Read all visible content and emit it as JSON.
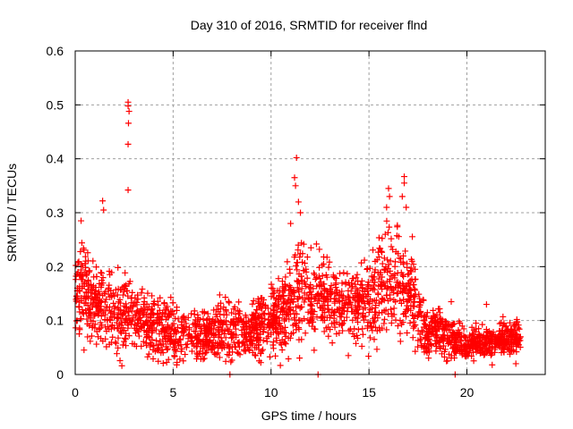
{
  "chart_data": {
    "type": "scatter",
    "title": "Day 310 of 2016, SRMTID for receiver flnd",
    "xlabel": "GPS time / hours",
    "ylabel": "SRMTID / TECUs",
    "xlim": [
      0,
      24
    ],
    "ylim": [
      0,
      0.6
    ],
    "xticks": [
      0,
      5,
      10,
      15,
      20
    ],
    "xtick_labels": [
      "0",
      "5",
      "10",
      "15",
      "20"
    ],
    "yticks": [
      0,
      0.1,
      0.2,
      0.3,
      0.4,
      0.5,
      0.6
    ],
    "ytick_labels": [
      "0",
      "0.1",
      "0.2",
      "0.3",
      "0.4",
      "0.5",
      "0.6"
    ],
    "grid": true,
    "legend": "none",
    "marker": "plus",
    "color": "#ff0000",
    "series": [
      {
        "name": "SRMTID",
        "envelope": {
          "x": [
            0.0,
            0.5,
            1.0,
            1.5,
            2.0,
            2.5,
            3.0,
            3.5,
            4.0,
            4.5,
            5.0,
            5.5,
            6.0,
            6.5,
            7.0,
            7.5,
            8.0,
            8.5,
            9.0,
            9.5,
            10.0,
            10.5,
            11.0,
            11.5,
            12.0,
            12.5,
            13.0,
            13.5,
            14.0,
            14.5,
            15.0,
            15.5,
            16.0,
            16.5,
            17.0,
            17.5,
            18.0,
            18.5,
            19.0,
            19.5,
            20.0,
            20.5,
            21.0,
            21.5,
            22.0,
            22.5
          ],
          "median": [
            0.15,
            0.16,
            0.13,
            0.13,
            0.1,
            0.12,
            0.11,
            0.1,
            0.09,
            0.08,
            0.08,
            0.08,
            0.07,
            0.07,
            0.08,
            0.08,
            0.08,
            0.08,
            0.08,
            0.09,
            0.1,
            0.11,
            0.13,
            0.16,
            0.14,
            0.15,
            0.13,
            0.13,
            0.14,
            0.13,
            0.15,
            0.16,
            0.17,
            0.17,
            0.16,
            0.12,
            0.08,
            0.08,
            0.07,
            0.06,
            0.06,
            0.06,
            0.06,
            0.06,
            0.07,
            0.07
          ],
          "spread": [
            0.06,
            0.06,
            0.05,
            0.06,
            0.04,
            0.06,
            0.04,
            0.04,
            0.04,
            0.04,
            0.04,
            0.04,
            0.03,
            0.03,
            0.03,
            0.04,
            0.04,
            0.04,
            0.04,
            0.04,
            0.04,
            0.05,
            0.06,
            0.07,
            0.05,
            0.05,
            0.05,
            0.04,
            0.05,
            0.05,
            0.06,
            0.07,
            0.07,
            0.07,
            0.06,
            0.05,
            0.03,
            0.03,
            0.03,
            0.02,
            0.02,
            0.02,
            0.02,
            0.02,
            0.02,
            0.02
          ]
        },
        "notable_points": [
          {
            "x": 2.7,
            "y": 0.505
          },
          {
            "x": 2.7,
            "y": 0.498
          },
          {
            "x": 2.75,
            "y": 0.488
          },
          {
            "x": 2.72,
            "y": 0.466
          },
          {
            "x": 2.7,
            "y": 0.427
          },
          {
            "x": 2.7,
            "y": 0.342
          },
          {
            "x": 0.3,
            "y": 0.285
          },
          {
            "x": 1.4,
            "y": 0.322
          },
          {
            "x": 1.45,
            "y": 0.305
          },
          {
            "x": 11.3,
            "y": 0.402
          },
          {
            "x": 11.2,
            "y": 0.365
          },
          {
            "x": 11.25,
            "y": 0.35
          },
          {
            "x": 11.4,
            "y": 0.32
          },
          {
            "x": 11.5,
            "y": 0.3
          },
          {
            "x": 11.0,
            "y": 0.28
          },
          {
            "x": 16.0,
            "y": 0.345
          },
          {
            "x": 16.05,
            "y": 0.33
          },
          {
            "x": 15.9,
            "y": 0.31
          },
          {
            "x": 16.8,
            "y": 0.367
          },
          {
            "x": 16.8,
            "y": 0.355
          },
          {
            "x": 16.7,
            "y": 0.33
          },
          {
            "x": 16.9,
            "y": 0.31
          },
          {
            "x": 17.2,
            "y": 0.21
          },
          {
            "x": 19.2,
            "y": 0.135
          },
          {
            "x": 21.0,
            "y": 0.13
          },
          {
            "x": 22.5,
            "y": 0.02
          },
          {
            "x": 7.9,
            "y": 0.0
          },
          {
            "x": 12.4,
            "y": 0.0
          },
          {
            "x": 19.4,
            "y": 0.0
          },
          {
            "x": 12.2,
            "y": 0.045
          }
        ]
      }
    ]
  }
}
